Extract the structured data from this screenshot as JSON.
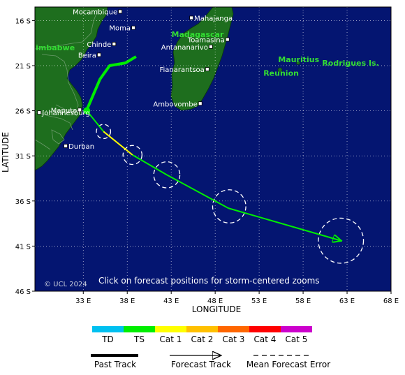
{
  "axes": {
    "ylabel": "LATITUDE",
    "xlabel": "LONGITUDE",
    "lat_ticks": [
      "16 S",
      "21 S",
      "26 S",
      "31 S",
      "36 S",
      "41 S",
      "46 S"
    ],
    "lon_ticks": [
      "33 E",
      "38 E",
      "43 E",
      "48 E",
      "53 E",
      "58 E",
      "63 E",
      "68 E"
    ],
    "lat_range": [
      -14.5,
      -46
    ],
    "lon_range": [
      27.5,
      68
    ]
  },
  "places": [
    {
      "name": "Mocambique",
      "lon": 37.2,
      "lat": -15.0
    },
    {
      "name": "Mahajanga",
      "lon": 45.3,
      "lat": -15.7
    },
    {
      "name": "Moma",
      "lon": 38.7,
      "lat": -16.8
    },
    {
      "name": "Madagascar",
      "lon": 46.0,
      "lat": -17.5
    },
    {
      "name": "Toamasina",
      "lon": 49.4,
      "lat": -18.1
    },
    {
      "name": "Chinde",
      "lon": 36.5,
      "lat": -18.6
    },
    {
      "name": "Antananarivo",
      "lon": 47.5,
      "lat": -18.9
    },
    {
      "name": "Zimbabwe",
      "lon": 29.5,
      "lat": -19.0
    },
    {
      "name": "Mauritius",
      "lon": 57.5,
      "lat": -20.3
    },
    {
      "name": "Rodrigues Is.",
      "lon": 63.4,
      "lat": -20.7
    },
    {
      "name": "Beira",
      "lon": 34.8,
      "lat": -19.8
    },
    {
      "name": "Fianarantsoa",
      "lon": 47.1,
      "lat": -21.4
    },
    {
      "name": "Reunion",
      "lon": 55.5,
      "lat": -21.8
    },
    {
      "name": "Ambovombe",
      "lon": 46.3,
      "lat": -25.2
    },
    {
      "name": "Maputo",
      "lon": 32.6,
      "lat": -25.9
    },
    {
      "name": "Johannesburg",
      "lon": 28.0,
      "lat": -26.2
    },
    {
      "name": "Durban",
      "lon": 31.0,
      "lat": -29.9
    }
  ],
  "track": {
    "past": [
      [
        39.0,
        -20.0
      ],
      [
        37.8,
        -20.7
      ],
      [
        36.0,
        -21.0
      ],
      [
        34.9,
        -22.5
      ],
      [
        33.4,
        -25.9
      ]
    ],
    "forecast": [
      {
        "pos": [
          33.4,
          -26.0
        ],
        "cat": "TS"
      },
      {
        "pos": [
          35.3,
          -28.3
        ],
        "cat": "TS"
      },
      {
        "pos": [
          38.6,
          -30.9
        ],
        "cat": "Cat 1"
      },
      {
        "pos": [
          42.5,
          -33.1
        ],
        "cat": "TS"
      },
      {
        "pos": [
          49.5,
          -36.8
        ],
        "cat": "TS"
      },
      {
        "pos": [
          62.3,
          -40.4
        ],
        "cat": "TS"
      }
    ],
    "error_circles": [
      {
        "center": [
          35.3,
          -28.3
        ],
        "radius_deg": 0.6
      },
      {
        "center": [
          38.6,
          -30.9
        ],
        "radius_deg": 0.8
      },
      {
        "center": [
          42.5,
          -33.1
        ],
        "radius_deg": 1.1
      },
      {
        "center": [
          49.6,
          -36.6
        ],
        "radius_deg": 1.4
      },
      {
        "center": [
          62.3,
          -40.4
        ],
        "radius_deg": 1.9
      }
    ]
  },
  "colors": {
    "ocean": "#041571",
    "land": "#1e6e1e",
    "TD": "#00c0f0",
    "TS": "#00ee00",
    "Cat 1": "#ffff00",
    "Cat 2": "#ffc000",
    "Cat 3": "#ff6600",
    "Cat 4": "#ff0000",
    "Cat 5": "#cc00cc"
  },
  "copyright": "© UCL 2024",
  "hint": "Click on forecast positions for storm-centered zooms",
  "legend": {
    "categories": [
      "TD",
      "TS",
      "Cat 1",
      "Cat 2",
      "Cat 3",
      "Cat 4",
      "Cat 5"
    ],
    "past_track": "Past Track",
    "forecast_track": "Forecast Track",
    "mean_error": "Mean Forecast Error"
  }
}
